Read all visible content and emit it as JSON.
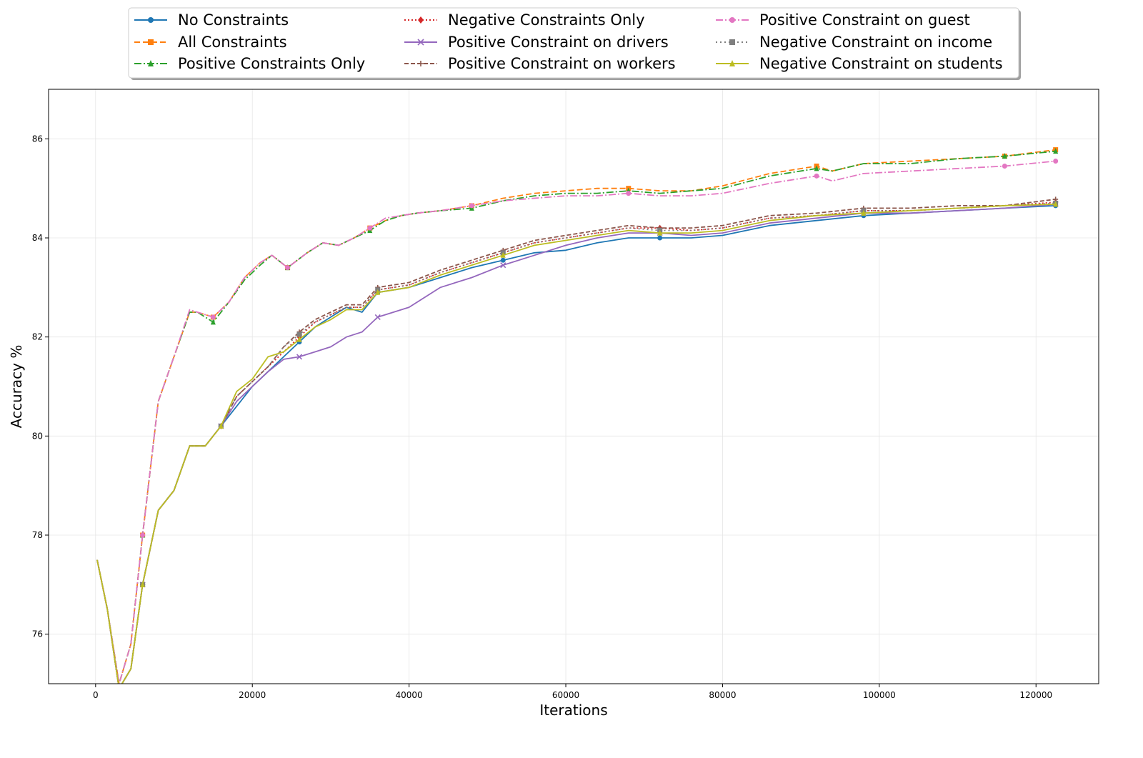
{
  "chart_data": {
    "type": "line",
    "title": "",
    "xlabel": "Iterations",
    "ylabel": "Accuracy %",
    "xlim": [
      -6000,
      128000
    ],
    "ylim": [
      75.0,
      87.0
    ],
    "xticks": [
      0,
      20000,
      40000,
      60000,
      80000,
      100000,
      120000
    ],
    "yticks": [
      76,
      78,
      80,
      82,
      84,
      86
    ],
    "grid": true,
    "legend_position": "top-center, outside plot, 3 columns",
    "series": [
      {
        "name": "No Constraints",
        "color": "#1f77b4",
        "dash": "",
        "marker": "circle",
        "x": [
          200,
          1500,
          3000,
          4500,
          6000,
          8000,
          10000,
          12000,
          14000,
          16000,
          18000,
          20000,
          22000,
          24000,
          26000,
          28000,
          30000,
          32000,
          34000,
          36000,
          38000,
          40000,
          44000,
          48000,
          52000,
          56000,
          60000,
          64000,
          68000,
          72000,
          76000,
          80000,
          86000,
          92000,
          98000,
          104000,
          110000,
          116000,
          122500
        ],
        "y": [
          77.5,
          76.5,
          74.9,
          75.3,
          77.0,
          78.5,
          78.9,
          79.8,
          79.8,
          80.2,
          80.6,
          81.0,
          81.3,
          81.6,
          81.9,
          82.2,
          82.4,
          82.6,
          82.5,
          82.9,
          82.95,
          83.0,
          83.2,
          83.4,
          83.55,
          83.7,
          83.75,
          83.9,
          84.0,
          84.0,
          84.0,
          84.05,
          84.25,
          84.35,
          84.45,
          84.5,
          84.55,
          84.6,
          84.65
        ]
      },
      {
        "name": "All Constraints",
        "color": "#ff7f0e",
        "dash": "8,4",
        "marker": "square",
        "x": [
          200,
          1500,
          3000,
          4500,
          6000,
          8000,
          10000,
          12000,
          13000,
          15000,
          17000,
          19000,
          21000,
          22500,
          24500,
          27000,
          29000,
          31000,
          33000,
          35000,
          37000,
          39000,
          41000,
          44000,
          48000,
          52000,
          56000,
          60000,
          64000,
          68000,
          72000,
          76000,
          80000,
          86000,
          92000,
          94000,
          98000,
          104000,
          110000,
          116000,
          122500
        ],
        "y": [
          77.5,
          76.5,
          75.0,
          75.8,
          78.0,
          80.7,
          81.6,
          82.5,
          82.5,
          82.4,
          82.7,
          83.2,
          83.5,
          83.65,
          83.4,
          83.7,
          83.9,
          83.85,
          84.0,
          84.2,
          84.35,
          84.45,
          84.5,
          84.55,
          84.65,
          84.8,
          84.9,
          84.95,
          85.0,
          85.0,
          84.95,
          84.95,
          85.05,
          85.3,
          85.45,
          85.35,
          85.5,
          85.55,
          85.6,
          85.65,
          85.78
        ]
      },
      {
        "name": "Positive Constraints Only",
        "color": "#2ca02c",
        "dash": "10,3,2,3",
        "marker": "triangle",
        "x": [
          200,
          1500,
          3000,
          4500,
          6000,
          8000,
          10000,
          12000,
          13000,
          15000,
          17000,
          19000,
          21000,
          22500,
          24500,
          27000,
          29000,
          31000,
          33000,
          35000,
          37000,
          39000,
          41000,
          44000,
          48000,
          52000,
          56000,
          60000,
          64000,
          68000,
          72000,
          76000,
          80000,
          86000,
          92000,
          94000,
          98000,
          104000,
          110000,
          116000,
          122500
        ],
        "y": [
          77.5,
          76.5,
          75.0,
          75.8,
          78.0,
          80.7,
          81.6,
          82.5,
          82.5,
          82.3,
          82.7,
          83.15,
          83.45,
          83.65,
          83.4,
          83.7,
          83.9,
          83.85,
          84.0,
          84.15,
          84.35,
          84.45,
          84.5,
          84.55,
          84.6,
          84.75,
          84.85,
          84.9,
          84.9,
          84.95,
          84.9,
          84.95,
          85.0,
          85.25,
          85.4,
          85.35,
          85.5,
          85.5,
          85.6,
          85.65,
          85.75
        ]
      },
      {
        "name": "Negative Constraints Only",
        "color": "#d62728",
        "dash": "2,3",
        "marker": "diamond",
        "x": [
          200,
          1500,
          3000,
          4500,
          6000,
          8000,
          10000,
          12000,
          14000,
          16000,
          18000,
          20000,
          22000,
          24000,
          26000,
          28000,
          30000,
          32000,
          34000,
          36000,
          38000,
          40000,
          44000,
          48000,
          52000,
          56000,
          60000,
          64000,
          68000,
          72000,
          76000,
          80000,
          86000,
          92000,
          98000,
          104000,
          110000,
          116000,
          122500
        ],
        "y": [
          77.5,
          76.5,
          74.9,
          75.3,
          77.0,
          78.5,
          78.9,
          79.8,
          79.8,
          80.2,
          80.8,
          81.1,
          81.4,
          81.7,
          82.0,
          82.3,
          82.45,
          82.6,
          82.6,
          82.95,
          83.0,
          83.05,
          83.3,
          83.5,
          83.7,
          83.9,
          84.0,
          84.1,
          84.2,
          84.2,
          84.15,
          84.2,
          84.4,
          84.45,
          84.55,
          84.55,
          84.6,
          84.65,
          84.72
        ]
      },
      {
        "name": "Positive Constraint on drivers",
        "color": "#9467bd",
        "dash": "",
        "marker": "x",
        "x": [
          200,
          1500,
          3000,
          4500,
          6000,
          8000,
          10000,
          12000,
          14000,
          16000,
          18000,
          20000,
          22000,
          24000,
          26000,
          28000,
          30000,
          32000,
          34000,
          36000,
          38000,
          40000,
          44000,
          48000,
          52000,
          56000,
          60000,
          64000,
          68000,
          72000,
          76000,
          80000,
          86000,
          92000,
          98000,
          104000,
          110000,
          116000,
          122500
        ],
        "y": [
          77.5,
          76.5,
          74.9,
          75.3,
          77.0,
          78.5,
          78.9,
          79.8,
          79.8,
          80.2,
          80.7,
          81.0,
          81.3,
          81.55,
          81.6,
          81.7,
          81.8,
          82.0,
          82.1,
          82.4,
          82.5,
          82.6,
          83.0,
          83.2,
          83.45,
          83.65,
          83.85,
          84.0,
          84.1,
          84.1,
          84.05,
          84.1,
          84.3,
          84.4,
          84.5,
          84.5,
          84.55,
          84.6,
          84.68
        ]
      },
      {
        "name": "Positive Constraint on workers",
        "color": "#8c564b",
        "dash": "6,3",
        "marker": "plus",
        "x": [
          200,
          1500,
          3000,
          4500,
          6000,
          8000,
          10000,
          12000,
          14000,
          16000,
          18000,
          20000,
          22000,
          24000,
          26000,
          28000,
          30000,
          32000,
          34000,
          36000,
          38000,
          40000,
          44000,
          48000,
          52000,
          56000,
          60000,
          64000,
          68000,
          72000,
          76000,
          80000,
          86000,
          92000,
          98000,
          104000,
          110000,
          116000,
          122500
        ],
        "y": [
          77.5,
          76.5,
          74.9,
          75.3,
          77.0,
          78.5,
          78.9,
          79.8,
          79.8,
          80.2,
          80.8,
          81.1,
          81.4,
          81.8,
          82.1,
          82.35,
          82.5,
          82.65,
          82.65,
          83.0,
          83.05,
          83.1,
          83.35,
          83.55,
          83.75,
          83.95,
          84.05,
          84.15,
          84.25,
          84.2,
          84.2,
          84.25,
          84.45,
          84.5,
          84.6,
          84.6,
          84.65,
          84.65,
          84.78
        ]
      },
      {
        "name": "Positive Constraint on guest",
        "color": "#e377c2",
        "dash": "10,3,2,3",
        "marker": "circle",
        "x": [
          200,
          1500,
          3000,
          4500,
          6000,
          8000,
          10000,
          12000,
          13000,
          15000,
          17000,
          19000,
          21000,
          22500,
          24500,
          27000,
          29000,
          31000,
          33000,
          35000,
          37000,
          39000,
          41000,
          44000,
          48000,
          52000,
          56000,
          60000,
          64000,
          68000,
          72000,
          76000,
          80000,
          86000,
          92000,
          94000,
          98000,
          104000,
          110000,
          116000,
          122500
        ],
        "y": [
          77.5,
          76.5,
          75.0,
          75.8,
          78.0,
          80.7,
          81.6,
          82.55,
          82.5,
          82.4,
          82.7,
          83.2,
          83.5,
          83.65,
          83.4,
          83.7,
          83.9,
          83.85,
          84.0,
          84.2,
          84.4,
          84.45,
          84.5,
          84.55,
          84.65,
          84.75,
          84.8,
          84.85,
          84.85,
          84.9,
          84.85,
          84.85,
          84.9,
          85.1,
          85.25,
          85.15,
          85.3,
          85.35,
          85.4,
          85.45,
          85.55
        ]
      },
      {
        "name": "Negative Constraint on income",
        "color": "#7f7f7f",
        "dash": "2,4",
        "marker": "square",
        "x": [
          200,
          1500,
          3000,
          4500,
          6000,
          8000,
          10000,
          12000,
          14000,
          16000,
          18000,
          20000,
          22000,
          24000,
          26000,
          28000,
          30000,
          32000,
          34000,
          36000,
          38000,
          40000,
          44000,
          48000,
          52000,
          56000,
          60000,
          64000,
          68000,
          72000,
          76000,
          80000,
          86000,
          92000,
          98000,
          104000,
          110000,
          116000,
          122500
        ],
        "y": [
          77.5,
          76.5,
          74.9,
          75.3,
          77.0,
          78.5,
          78.9,
          79.8,
          79.8,
          80.2,
          80.8,
          81.1,
          81.4,
          81.8,
          82.05,
          82.3,
          82.45,
          82.6,
          82.6,
          82.95,
          83.0,
          83.05,
          83.3,
          83.5,
          83.7,
          83.9,
          84.0,
          84.1,
          84.2,
          84.15,
          84.15,
          84.2,
          84.4,
          84.45,
          84.55,
          84.55,
          84.6,
          84.65,
          84.7
        ]
      },
      {
        "name": "Negative Constraint on students",
        "color": "#bcbd22",
        "dash": "",
        "marker": "triangle",
        "x": [
          200,
          1500,
          3000,
          4500,
          6000,
          8000,
          10000,
          12000,
          14000,
          16000,
          18000,
          20000,
          22000,
          24000,
          26000,
          28000,
          30000,
          32000,
          34000,
          36000,
          38000,
          40000,
          44000,
          48000,
          52000,
          56000,
          60000,
          64000,
          68000,
          72000,
          76000,
          80000,
          86000,
          92000,
          98000,
          104000,
          110000,
          116000,
          122500
        ],
        "y": [
          77.5,
          76.5,
          74.9,
          75.3,
          77.0,
          78.5,
          78.9,
          79.8,
          79.8,
          80.2,
          80.9,
          81.15,
          81.6,
          81.7,
          81.95,
          82.2,
          82.35,
          82.55,
          82.55,
          82.9,
          82.95,
          83.0,
          83.25,
          83.45,
          83.65,
          83.85,
          83.95,
          84.05,
          84.15,
          84.1,
          84.1,
          84.15,
          84.35,
          84.45,
          84.5,
          84.55,
          84.6,
          84.65,
          84.68
        ]
      }
    ]
  }
}
